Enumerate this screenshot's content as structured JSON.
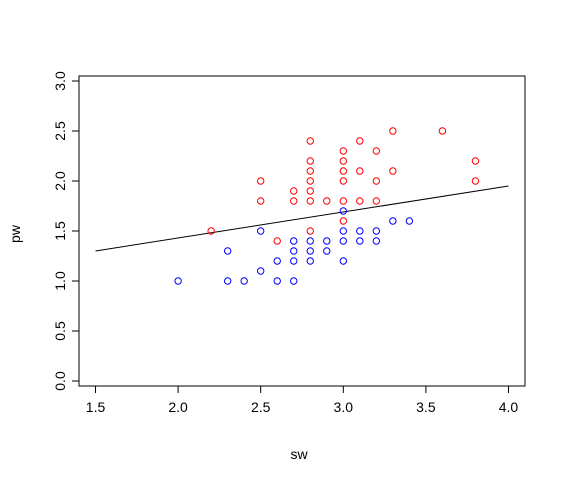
{
  "chart_data": {
    "type": "scatter",
    "title": "",
    "xlabel": "sw",
    "ylabel": "pw",
    "xlim": [
      1.4,
      4.1
    ],
    "ylim": [
      -0.05,
      3.05
    ],
    "x_ticks": [
      "1.5",
      "2.0",
      "2.5",
      "3.0",
      "3.5",
      "4.0"
    ],
    "y_ticks": [
      "0.0",
      "0.5",
      "1.0",
      "1.5",
      "2.0",
      "2.5",
      "3.0"
    ],
    "grid": false,
    "legend": "none",
    "series": [
      {
        "color": "#ff0000",
        "marker": "open-circle",
        "points": [
          [
            2.2,
            1.5
          ],
          [
            2.5,
            2.0
          ],
          [
            2.5,
            1.8
          ],
          [
            2.6,
            1.4
          ],
          [
            2.7,
            1.9
          ],
          [
            2.7,
            1.8
          ],
          [
            2.8,
            2.4
          ],
          [
            2.8,
            2.2
          ],
          [
            2.8,
            2.1
          ],
          [
            2.8,
            2.0
          ],
          [
            2.8,
            1.9
          ],
          [
            2.8,
            1.8
          ],
          [
            2.8,
            1.5
          ],
          [
            2.9,
            1.8
          ],
          [
            3.0,
            2.3
          ],
          [
            3.0,
            2.2
          ],
          [
            3.0,
            2.1
          ],
          [
            3.0,
            2.0
          ],
          [
            3.0,
            1.8
          ],
          [
            3.0,
            1.6
          ],
          [
            3.1,
            2.4
          ],
          [
            3.1,
            2.1
          ],
          [
            3.1,
            1.8
          ],
          [
            3.2,
            2.3
          ],
          [
            3.2,
            2.0
          ],
          [
            3.2,
            1.8
          ],
          [
            3.3,
            2.5
          ],
          [
            3.3,
            2.1
          ],
          [
            3.6,
            2.5
          ],
          [
            3.8,
            2.2
          ],
          [
            3.8,
            2.0
          ]
        ]
      },
      {
        "color": "#0000ff",
        "marker": "open-circle",
        "points": [
          [
            2.0,
            1.0
          ],
          [
            2.3,
            1.3
          ],
          [
            2.3,
            1.0
          ],
          [
            2.4,
            1.0
          ],
          [
            2.5,
            1.5
          ],
          [
            2.5,
            1.1
          ],
          [
            2.6,
            1.2
          ],
          [
            2.6,
            1.0
          ],
          [
            2.7,
            1.4
          ],
          [
            2.7,
            1.3
          ],
          [
            2.7,
            1.2
          ],
          [
            2.7,
            1.0
          ],
          [
            2.8,
            1.4
          ],
          [
            2.8,
            1.3
          ],
          [
            2.8,
            1.2
          ],
          [
            2.9,
            1.4
          ],
          [
            2.9,
            1.3
          ],
          [
            3.0,
            1.7
          ],
          [
            3.0,
            1.5
          ],
          [
            3.0,
            1.4
          ],
          [
            3.0,
            1.2
          ],
          [
            3.1,
            1.5
          ],
          [
            3.1,
            1.4
          ],
          [
            3.2,
            1.5
          ],
          [
            3.2,
            1.4
          ],
          [
            3.3,
            1.6
          ],
          [
            3.4,
            1.6
          ]
        ]
      }
    ],
    "regression_line": {
      "color": "#000000",
      "x": [
        1.5,
        4.0
      ],
      "y": [
        1.3,
        1.95
      ]
    }
  }
}
